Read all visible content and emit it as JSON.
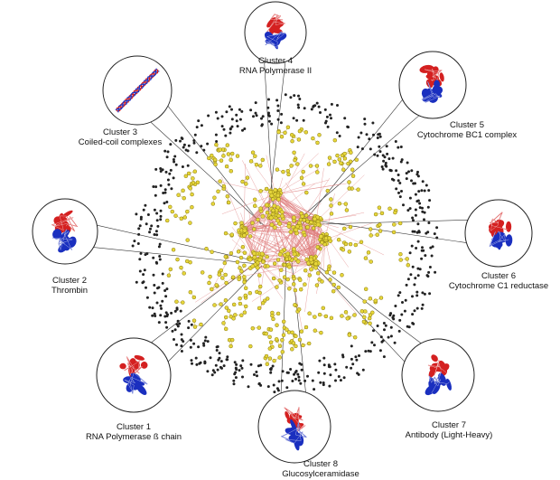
{
  "clusters": [
    {
      "number_label": "Cluster 4",
      "name": "RNA Polymerase II",
      "structure_icon": "protein-structure-red-blue"
    },
    {
      "number_label": "Cluster 3",
      "name": "Coiled-coil complexes",
      "structure_icon": "coiled-coil-helices"
    },
    {
      "number_label": "Cluster 5",
      "name": "Cytochrome BC1 complex",
      "structure_icon": "protein-structure-red-blue"
    },
    {
      "number_label": "Cluster 2",
      "name": "Thrombin",
      "structure_icon": "protein-structure-red-blue"
    },
    {
      "number_label": "Cluster 6",
      "name": "Cytochrome C1 reductase",
      "structure_icon": "protein-structure-red-blue"
    },
    {
      "number_label": "Cluster 1",
      "name": "RNA Polymerase ß chain",
      "structure_icon": "protein-structure-red-blue"
    },
    {
      "number_label": "Cluster 7",
      "name": "Antibody (Light-Heavy)",
      "structure_icon": "protein-structure-red-blue"
    },
    {
      "number_label": "Cluster 8",
      "name": "Glucosylceramidase",
      "structure_icon": "protein-structure-red-blue"
    }
  ],
  "colors": {
    "node_fill": "#e6d63a",
    "node_stroke": "#8a7a10",
    "edge": "#e08080",
    "singleton": "#222222",
    "chain_a": "#d42020",
    "chain_b": "#1a2fbf",
    "leader_line": "#333333"
  }
}
